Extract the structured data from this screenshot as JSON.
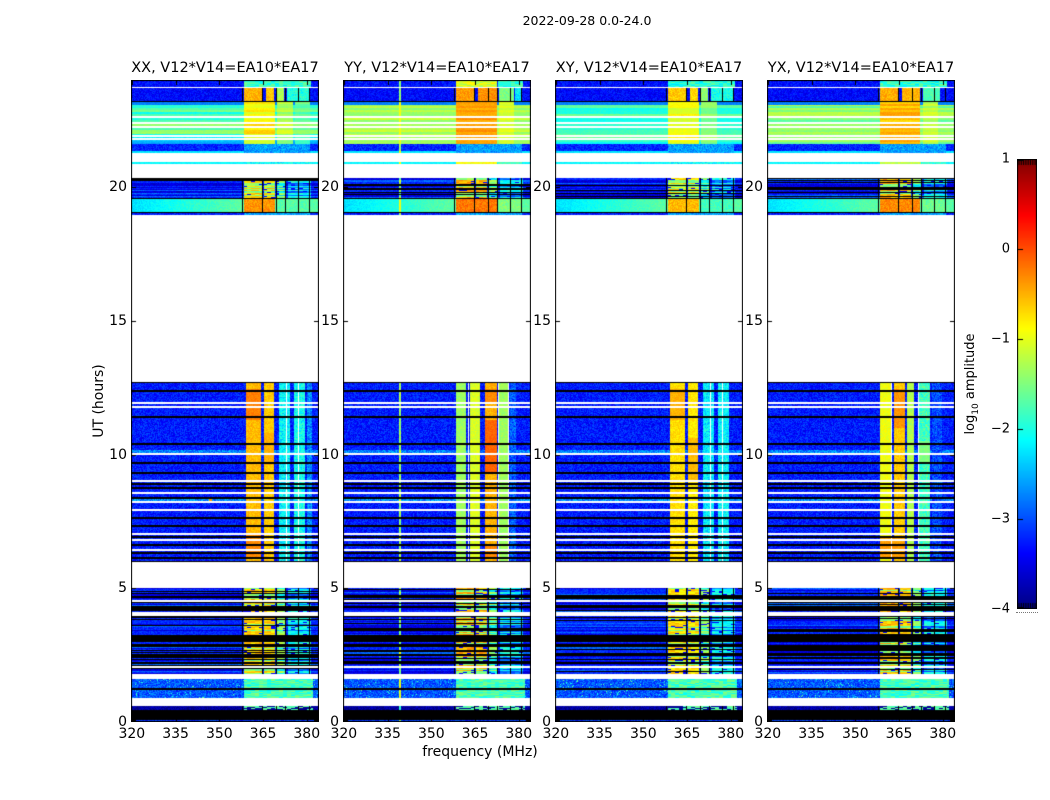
{
  "figure": {
    "title": "2022-09-28 0.0-24.0"
  },
  "axes": {
    "xlabel": "frequency (MHz)",
    "ylabel": "UT (hours)",
    "x_ticks": [
      320,
      335,
      350,
      365,
      380
    ],
    "y_ticks": [
      0,
      5,
      10,
      15,
      20
    ],
    "x_range_mhz": [
      319.7,
      384.2
    ],
    "y_range_hours": [
      0,
      24
    ]
  },
  "colorbar": {
    "label_prefix": "log",
    "label_sub": "10",
    "label_suffix": " amplitude",
    "tick_labels": [
      "1",
      "0",
      "−1",
      "−2",
      "−3",
      "−4"
    ],
    "tick_values": [
      1,
      0,
      -1,
      -2,
      -3,
      -4
    ],
    "range": [
      -4,
      1
    ],
    "colormap": "jet"
  },
  "chart_data": {
    "type": "heatmap",
    "title": "2022-09-28 0.0-24.0",
    "xlabel": "frequency (MHz)",
    "ylabel": "UT (hours)",
    "x_range_mhz": [
      319.7,
      384.2
    ],
    "y_range_hours": [
      0,
      24
    ],
    "value_label": "log10 amplitude",
    "value_range": [
      -4,
      1
    ],
    "description": "Dynamic spectra (time vs frequency) of four correlation products for baseline V12*V14=EA10*EA17. Data present in hour ranges ~0-5, ~6-12.7 and ~19-24; white elsewhere. Narrowband RFI between ~358 and 382 MHz.",
    "panels": [
      {
        "id": "XX",
        "title": "XX, V12*V14=EA10*EA17",
        "green_amp": -1.72,
        "streak": 0.5,
        "green_low_delta": -0.5,
        "cols_top": [
          [
            358.5,
            364.5,
            -0.5
          ],
          [
            366.0,
            368.9,
            -0.6
          ],
          [
            369.9,
            372.3,
            -1.3
          ],
          [
            373.2,
            380.6,
            -1.95
          ]
        ],
        "cols_toprow": [
          [
            358.5,
            381.5,
            -1.9
          ]
        ],
        "cols_green": [
          [
            358.5,
            369.0,
            -0.85
          ],
          [
            369.9,
            375.2,
            -1.25
          ],
          [
            375.8,
            381.0,
            -1.6
          ]
        ],
        "cols_thin": [
          [
            358.5,
            381.0,
            -2.1
          ]
        ],
        "cols_g19": [
          [
            358.5,
            369.0,
            -0.35
          ],
          [
            369.9,
            381.2,
            -1.7
          ]
        ],
        "cols_mid": [
          [
            359.3,
            364.4,
            -0.55
          ],
          [
            365.3,
            368.9,
            -0.62
          ],
          [
            370.4,
            374.4,
            -2.15
          ],
          [
            375.6,
            379.4,
            -2.05
          ],
          [
            380.1,
            381.7,
            -2.7
          ]
        ],
        "stripe_warm": 0,
        "hot": [
          [
            11.3,
            12.45,
            359.3,
            364.4,
            -0.25
          ],
          [
            6.1,
            7.0,
            359.3,
            364.4,
            -0.3
          ],
          [
            9.6,
            10.8,
            365.3,
            368.9,
            -0.5
          ]
        ],
        "white_vlines_mid": [
          373.0,
          377.0
        ],
        "red_speck": [
          8.28,
          347.0
        ]
      },
      {
        "id": "YY",
        "title": "YY, V12*V14=EA10*EA17",
        "green_amp": -1.28,
        "streak": 0.22,
        "green_low_delta": 0,
        "cols_top": [
          [
            358.5,
            364.5,
            -0.4
          ],
          [
            365.9,
            372.5,
            -0.32
          ],
          [
            373.2,
            378.2,
            -1.5
          ],
          [
            378.8,
            380.9,
            -2.2
          ]
        ],
        "cols_toprow": [
          [
            358.5,
            372.5,
            -1.1
          ],
          [
            373.0,
            381.5,
            -1.9
          ]
        ],
        "cols_green": [
          [
            358.5,
            372.6,
            -0.4
          ],
          [
            373.2,
            378.5,
            -1.05
          ]
        ],
        "cols_thin": [
          [
            358.5,
            372.5,
            -0.9
          ],
          [
            373.0,
            381.0,
            -1.8
          ]
        ],
        "cols_g19": [
          [
            358.5,
            372.6,
            -0.2
          ],
          [
            373.2,
            381.2,
            -1.5
          ]
        ],
        "cols_mid": [
          [
            358.4,
            362.0,
            -1.35
          ],
          [
            363.4,
            366.6,
            -1.05
          ],
          [
            368.3,
            372.7,
            -0.5
          ],
          [
            373.1,
            376.2,
            -1.35
          ],
          [
            377.0,
            379.0,
            -2.9
          ]
        ],
        "stripe_warm": 0.15,
        "hot": [
          [
            9.3,
            11.3,
            368.3,
            372.7,
            -0.12
          ],
          [
            11.9,
            12.45,
            368.3,
            372.7,
            -0.3
          ],
          [
            6.1,
            6.6,
            368.3,
            372.7,
            -0.3
          ]
        ],
        "white_vlines_mid": [
          362.6,
          372.9,
          376.6
        ],
        "vline_mhz": 339.2
      },
      {
        "id": "XY",
        "title": "XY, V12*V14=EA10*EA17",
        "green_amp": -1.8,
        "streak": 0.3,
        "green_low_delta": -0.2,
        "cols_top": [
          [
            358.5,
            364.5,
            -0.62
          ],
          [
            366.0,
            368.9,
            -0.7
          ],
          [
            369.9,
            372.3,
            -1.4
          ],
          [
            373.2,
            380.6,
            -2.0
          ]
        ],
        "cols_toprow": [
          [
            358.5,
            381.5,
            -1.95
          ]
        ],
        "cols_green": [
          [
            358.5,
            369.0,
            -0.95
          ],
          [
            369.9,
            375.2,
            -1.45
          ]
        ],
        "cols_thin": [
          [
            358.5,
            381.0,
            -2.15
          ]
        ],
        "cols_g19": [
          [
            358.5,
            369.0,
            -0.55
          ],
          [
            369.9,
            381.2,
            -1.8
          ]
        ],
        "cols_mid": [
          [
            359.3,
            364.4,
            -0.72
          ],
          [
            365.3,
            368.9,
            -0.78
          ],
          [
            370.4,
            374.4,
            -2.2
          ],
          [
            375.6,
            379.4,
            -2.15
          ]
        ],
        "stripe_warm": -0.08,
        "hot": [
          [
            11.3,
            12.45,
            359.3,
            364.4,
            -0.5
          ],
          [
            9.0,
            10.6,
            365.3,
            368.9,
            -0.55
          ]
        ],
        "white_vlines_mid": [
          373.0,
          377.0
        ]
      },
      {
        "id": "YX",
        "title": "YX, V12*V14=EA10*EA17",
        "green_amp": -1.45,
        "streak": 0.3,
        "green_low_delta": -0.15,
        "cols_top": [
          [
            358.5,
            364.5,
            -0.48
          ],
          [
            366.0,
            372.2,
            -0.5
          ],
          [
            373.2,
            379.2,
            -1.75
          ]
        ],
        "cols_toprow": [
          [
            358.5,
            381.5,
            -1.9
          ]
        ],
        "cols_green": [
          [
            358.5,
            372.2,
            -0.55
          ],
          [
            373.2,
            378.5,
            -1.2
          ]
        ],
        "cols_thin": [
          [
            358.5,
            372.5,
            -1.2
          ],
          [
            373.0,
            381.0,
            -1.9
          ]
        ],
        "cols_g19": [
          [
            358.5,
            372.2,
            -0.3
          ],
          [
            373.2,
            381.2,
            -1.6
          ]
        ],
        "cols_mid": [
          [
            358.4,
            362.6,
            -0.95
          ],
          [
            363.2,
            366.9,
            -0.62
          ],
          [
            367.6,
            370.3,
            -1.25
          ],
          [
            371.9,
            375.5,
            -1.8
          ],
          [
            376.4,
            379.6,
            -3.0
          ]
        ],
        "stripe_warm": 0.1,
        "hot": [
          [
            11.0,
            12.45,
            363.2,
            366.9,
            -0.35
          ],
          [
            6.1,
            6.9,
            358.4,
            366.9,
            -0.4
          ],
          [
            9.7,
            10.5,
            371.9,
            375.5,
            -1.5
          ]
        ],
        "white_vlines_mid": [
          362.3,
          371.6
        ]
      }
    ],
    "render": {
      "bands": [
        {
          "t": [
            23.75,
            24.0
          ],
          "type": "noise",
          "base": -3.3,
          "cols": "cols_toprow",
          "dash": true
        },
        {
          "t": [
            23.18,
            23.7
          ],
          "type": "noise",
          "base": -3.35,
          "cols": "cols_top",
          "eb": 1
        },
        {
          "t": [
            21.6,
            23.19
          ],
          "type": "green",
          "cols": "cols_green"
        },
        {
          "t": [
            21.35,
            21.6
          ],
          "type": "noise",
          "base": -3.2,
          "cols": "cols_weak"
        },
        {
          "t": [
            21.28,
            21.35
          ],
          "type": "thin",
          "amp": -2.25,
          "cols": "cols_weak"
        },
        {
          "t": [
            20.85,
            20.95
          ],
          "type": "thin",
          "amp": -2.15,
          "cols": "cols_thin"
        },
        {
          "t": [
            19.6,
            20.35
          ],
          "type": "stripes",
          "bf": 0.2,
          "cols": "cols_stripes"
        },
        {
          "t": [
            19.03,
            19.6
          ],
          "type": "g19",
          "cols": "cols_g19",
          "et": 1,
          "eb": 1
        },
        {
          "t": [
            18.95,
            19.03
          ],
          "type": "noise",
          "base": -3.25,
          "cols": "cols_weak"
        },
        {
          "t": [
            6.0,
            12.7
          ],
          "type": "mid",
          "base": -3.25,
          "cols": "cols_mid",
          "et": 1,
          "eb": 1
        },
        {
          "t": [
            4.1,
            5.0
          ],
          "type": "stripes",
          "bf": 0.26,
          "cols": "cols_stripes"
        },
        {
          "t": [
            3.25,
            3.95
          ],
          "type": "stripes",
          "bf": 0.26,
          "cols": "cols_stripes"
        },
        {
          "t": [
            3.0,
            3.25
          ],
          "type": "black"
        },
        {
          "t": [
            1.8,
            3.0
          ],
          "type": "stripes",
          "bf": 0.3,
          "cols": "cols_stripes"
        },
        {
          "t": [
            0.9,
            1.62
          ],
          "type": "noise",
          "base": -2.95,
          "sigma": 0.35,
          "speckle": 0.03,
          "cols": "cols_bb",
          "dash": true
        },
        {
          "t": [
            0.45,
            0.6
          ],
          "type": "darkdash",
          "base": -3.85,
          "cols": "cols_bb"
        },
        {
          "t": [
            0.08,
            0.45
          ],
          "type": "black"
        },
        {
          "t": [
            0.0,
            0.08
          ],
          "type": "noise",
          "base": -3.1
        }
      ],
      "cols_stripes": [
        [
          358.3,
          364.6,
          -0.6
        ],
        [
          365.4,
          369.2,
          -0.65
        ],
        [
          369.9,
          372.6,
          -1.35
        ],
        [
          373.5,
          377.0,
          -2.0
        ],
        [
          377.5,
          381.3,
          -2.05
        ]
      ],
      "cols_weak": [
        [
          358.5,
          381.0,
          -2.6
        ]
      ],
      "cols_bb": [
        [
          358.5,
          382.0,
          -1.78
        ]
      ],
      "black_vlines": [
        358.1,
        364.9,
        369.5,
        372.8,
        377.3,
        381.0
      ],
      "black_lines": [
        12.42,
        11.45,
        10.42,
        9.72,
        9.35,
        8.95,
        8.8,
        8.42,
        7.65,
        7.35,
        6.95,
        6.65,
        6.35,
        6.15,
        4.7,
        4.35,
        2.88,
        2.55,
        2.25,
        1.28
      ],
      "white_lines": [
        22.65,
        22.42,
        22.28,
        21.95,
        21.82,
        11.95,
        11.8,
        10.05,
        9.05,
        8.58,
        8.25,
        7.95,
        7.05,
        6.85,
        6.45,
        4.56,
        2.1
      ],
      "speckle_rows": [
        10.1,
        8.3
      ],
      "noise_sigma": 0.24
    }
  }
}
